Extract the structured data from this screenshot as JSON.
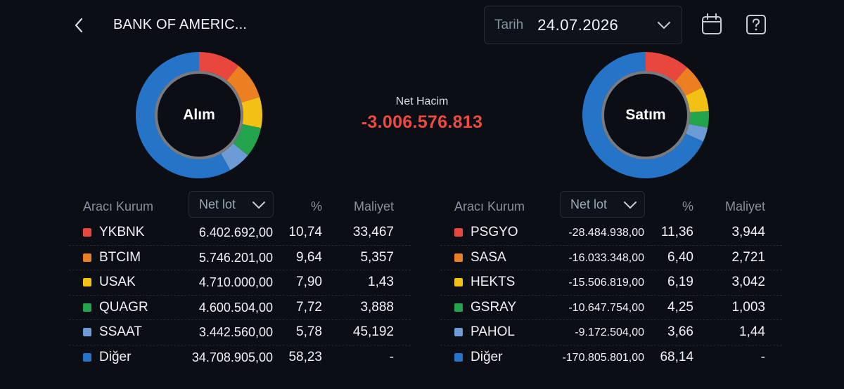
{
  "header": {
    "title": "BANK OF AMERIC...",
    "date_label": "Tarih",
    "date_value": "24.07.2026"
  },
  "summary": {
    "net_volume_label": "Net Hacim",
    "net_volume_value": "-3.006.576.813",
    "net_volume_color": "#ef4a3c"
  },
  "buy": {
    "label": "Alım",
    "columns": {
      "broker": "Aracı Kurum",
      "sort": "Net lot",
      "pct": "%",
      "cost": "Maliyet"
    },
    "rows": [
      {
        "name": "YKBNK",
        "lot": "6.402.692,00",
        "pct": "10,74",
        "cost": "33,467",
        "color": "#e8473d",
        "share": 10.74
      },
      {
        "name": "BTCIM",
        "lot": "5.746.201,00",
        "pct": "9,64",
        "cost": "5,357",
        "color": "#ec7f22",
        "share": 9.64
      },
      {
        "name": "USAK",
        "lot": "4.710.000,00",
        "pct": "7,90",
        "cost": "1,43",
        "color": "#f3c114",
        "share": 7.9
      },
      {
        "name": "QUAGR",
        "lot": "4.600.504,00",
        "pct": "7,72",
        "cost": "3,888",
        "color": "#23a34c",
        "share": 7.72
      },
      {
        "name": "SSAAT",
        "lot": "3.442.560,00",
        "pct": "5,78",
        "cost": "45,192",
        "color": "#6d9bd6",
        "share": 5.78
      },
      {
        "name": "Diğer",
        "lot": "34.708.905,00",
        "pct": "58,23",
        "cost": "-",
        "color": "#2574c7",
        "share": 58.23
      }
    ]
  },
  "sell": {
    "label": "Satım",
    "columns": {
      "broker": "Aracı Kurum",
      "sort": "Net lot",
      "pct": "%",
      "cost": "Maliyet"
    },
    "rows": [
      {
        "name": "PSGYO",
        "lot": "-28.484.938,00",
        "pct": "11,36",
        "cost": "3,944",
        "color": "#e8473d",
        "share": 11.36
      },
      {
        "name": "SASA",
        "lot": "-16.033.348,00",
        "pct": "6,40",
        "cost": "2,721",
        "color": "#ec7f22",
        "share": 6.4
      },
      {
        "name": "HEKTS",
        "lot": "-15.506.819,00",
        "pct": "6,19",
        "cost": "3,042",
        "color": "#f3c114",
        "share": 6.19
      },
      {
        "name": "GSRAY",
        "lot": "-10.647.754,00",
        "pct": "4,25",
        "cost": "1,003",
        "color": "#23a34c",
        "share": 4.25
      },
      {
        "name": "PAHOL",
        "lot": "-9.172.504,00",
        "pct": "3,66",
        "cost": "1,44",
        "color": "#6d9bd6",
        "share": 3.66
      },
      {
        "name": "Diğer",
        "lot": "-170.805.801,00",
        "pct": "68,14",
        "cost": "-",
        "color": "#2574c7",
        "share": 68.14
      }
    ]
  },
  "icons": {
    "back": "chevron-left-icon",
    "date_dropdown": "chevron-down-icon",
    "calendar": "calendar-icon",
    "help": "help-question-icon"
  }
}
